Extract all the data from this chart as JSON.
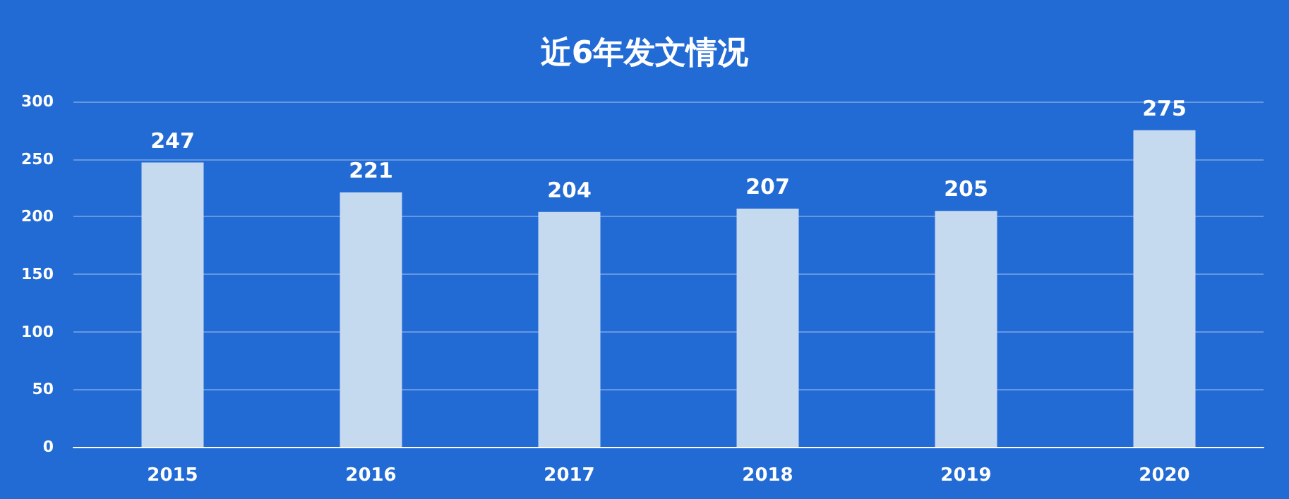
{
  "chart_data": {
    "type": "bar",
    "title": "近6年发文情况",
    "categories": [
      "2015",
      "2016",
      "2017",
      "2018",
      "2019",
      "2020"
    ],
    "values": [
      247,
      221,
      204,
      207,
      205,
      275
    ],
    "color": "#c5d9ef",
    "ylim": [
      0,
      300
    ],
    "yticks": [
      0,
      50,
      100,
      150,
      200,
      250,
      300
    ],
    "grid": "y",
    "data_labels": true
  }
}
